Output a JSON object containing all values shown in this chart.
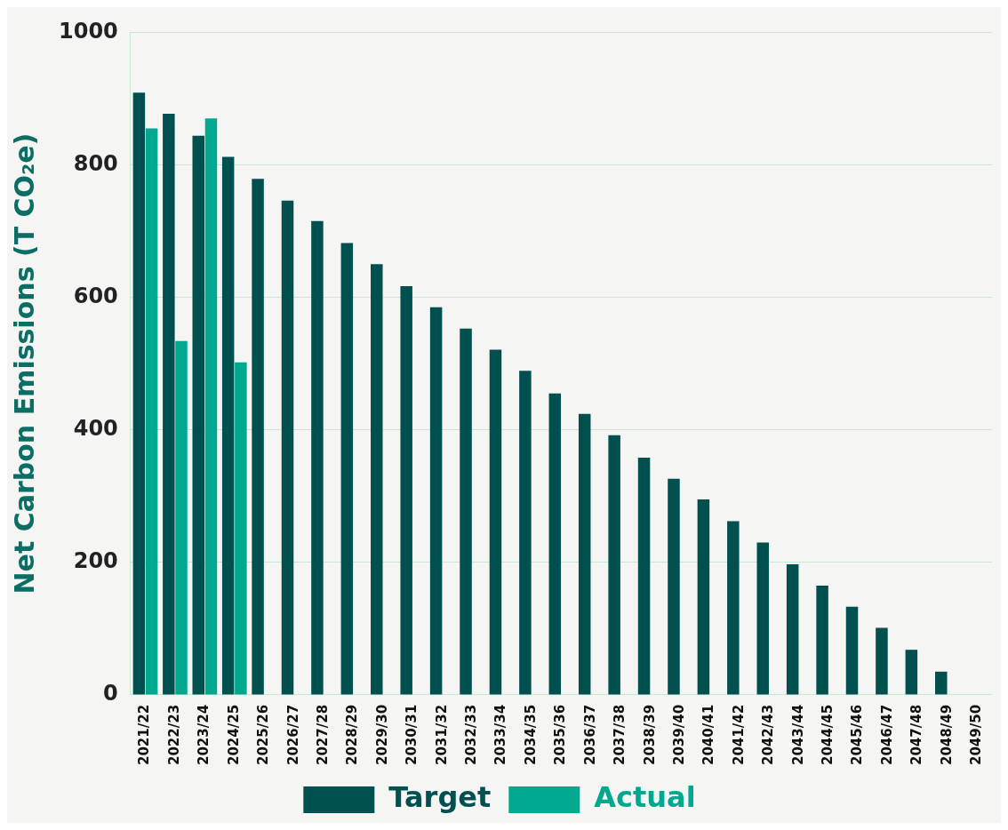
{
  "chart_data": {
    "type": "bar",
    "ylabel": "Net Carbon Emissions (T CO₂e)",
    "categories": [
      "2021/22",
      "2022/23",
      "2023/24",
      "2024/25",
      "2025/26",
      "2026/27",
      "2027/28",
      "2028/29",
      "2029/30",
      "2030/31",
      "2031/32",
      "2032/33",
      "2033/34",
      "2034/35",
      "2035/36",
      "2036/37",
      "2037/38",
      "2038/39",
      "2039/40",
      "2040/41",
      "2041/42",
      "2042/43",
      "2043/44",
      "2044/45",
      "2045/46",
      "2046/47",
      "2047/48",
      "2048/49",
      "2049/50"
    ],
    "series": [
      {
        "name": "Target",
        "color": "#00504f",
        "values": [
          909,
          877,
          844,
          812,
          779,
          746,
          715,
          682,
          650,
          617,
          585,
          553,
          521,
          489,
          455,
          424,
          392,
          358,
          326,
          295,
          262,
          230,
          197,
          165,
          133,
          101,
          68,
          35,
          0
        ]
      },
      {
        "name": "Actual",
        "color": "#00a88f",
        "values": [
          855,
          534,
          870,
          502,
          null,
          null,
          null,
          null,
          null,
          null,
          null,
          null,
          null,
          null,
          null,
          null,
          null,
          null,
          null,
          null,
          null,
          null,
          null,
          null,
          null,
          null,
          null,
          null,
          null
        ]
      }
    ],
    "ylim": [
      0,
      1000
    ],
    "yticks": [
      0,
      200,
      400,
      600,
      800,
      1000
    ],
    "grid": "y",
    "legend": "bottom"
  }
}
